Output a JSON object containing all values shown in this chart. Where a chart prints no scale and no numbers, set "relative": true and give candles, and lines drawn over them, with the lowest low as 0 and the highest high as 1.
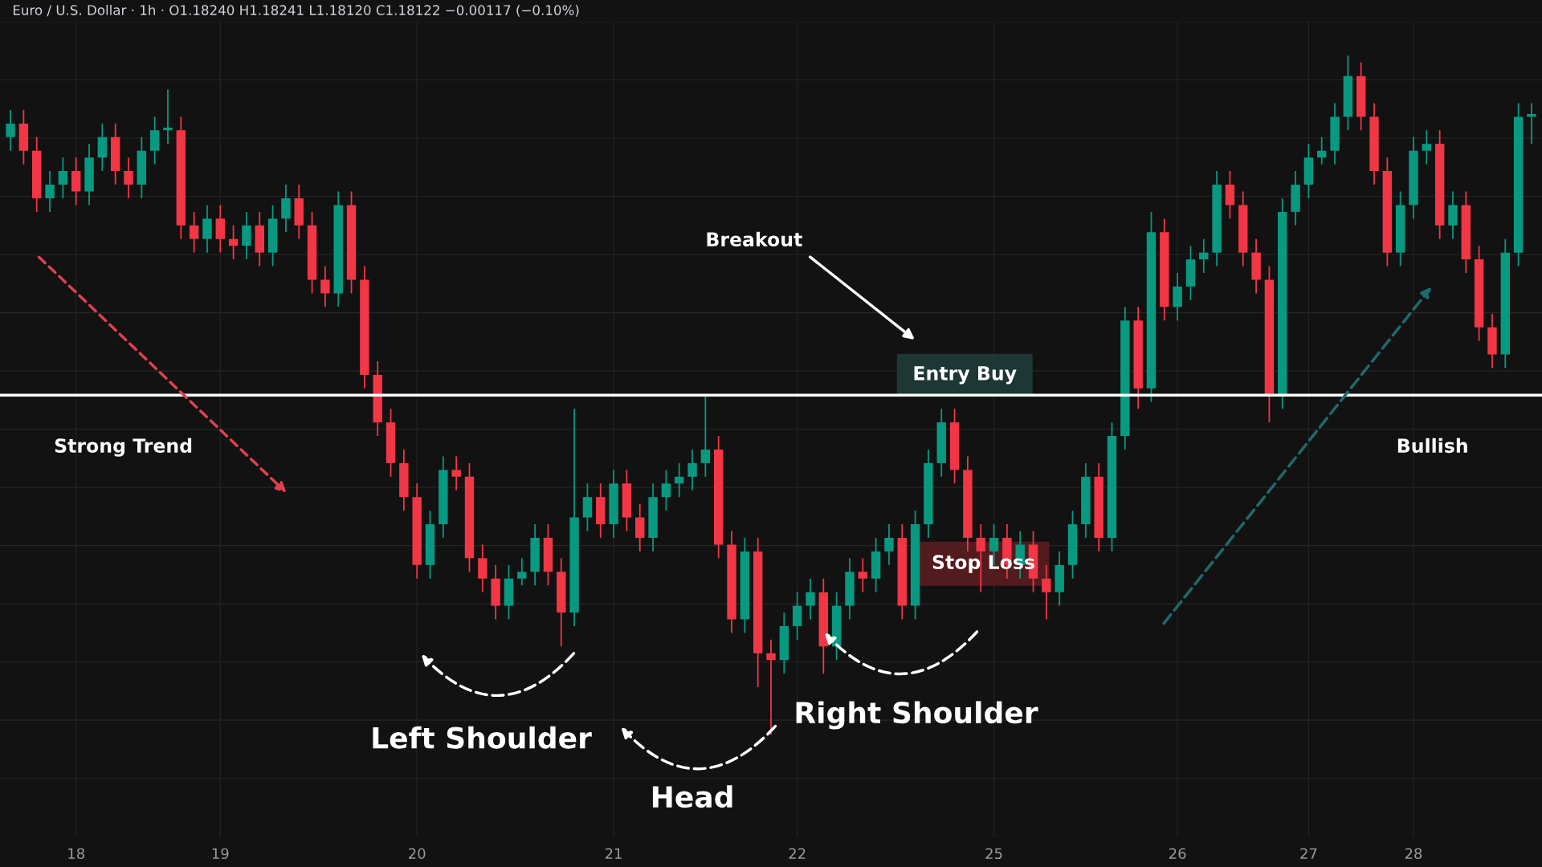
{
  "chart_data": {
    "type": "candlestick",
    "relative": true,
    "grid": true,
    "title": "Euro / U.S. Dollar · 1h · O1.18240 H1.18241 L1.18120 C1.18122 −0.00117 (−0.10%)",
    "categories": [
      null,
      null,
      null,
      null,
      null,
      "18",
      null,
      null,
      null,
      null,
      null,
      null,
      null,
      null,
      null,
      null,
      "19",
      null,
      null,
      null,
      null,
      null,
      null,
      null,
      null,
      null,
      null,
      null,
      null,
      null,
      null,
      "20",
      null,
      null,
      null,
      null,
      null,
      null,
      null,
      null,
      null,
      null,
      null,
      null,
      null,
      null,
      "21",
      null,
      null,
      null,
      null,
      null,
      null,
      null,
      null,
      null,
      null,
      null,
      null,
      null,
      "22",
      null,
      null,
      null,
      null,
      null,
      null,
      null,
      null,
      null,
      null,
      null,
      null,
      null,
      null,
      "25",
      null,
      null,
      null,
      null,
      null,
      null,
      null,
      null,
      null,
      null,
      null,
      null,
      null,
      "26",
      null,
      null,
      null,
      null,
      null,
      null,
      null,
      null,
      null,
      "27",
      null,
      null,
      null,
      null,
      null,
      null,
      null,
      "28",
      null,
      null,
      null,
      null,
      null,
      null,
      null,
      null,
      null
    ],
    "ohlc": [
      [
        0.88,
        0.92,
        0.86,
        0.9
      ],
      [
        0.9,
        0.92,
        0.84,
        0.86
      ],
      [
        0.86,
        0.88,
        0.77,
        0.79
      ],
      [
        0.79,
        0.83,
        0.77,
        0.81
      ],
      [
        0.81,
        0.85,
        0.79,
        0.83
      ],
      [
        0.83,
        0.85,
        0.78,
        0.8
      ],
      [
        0.8,
        0.87,
        0.78,
        0.85
      ],
      [
        0.85,
        0.9,
        0.83,
        0.88
      ],
      [
        0.88,
        0.9,
        0.81,
        0.83
      ],
      [
        0.83,
        0.85,
        0.79,
        0.81
      ],
      [
        0.81,
        0.88,
        0.79,
        0.86
      ],
      [
        0.86,
        0.91,
        0.84,
        0.89
      ],
      [
        0.89,
        0.95,
        0.87,
        0.89
      ],
      [
        0.89,
        0.91,
        0.73,
        0.75
      ],
      [
        0.75,
        0.77,
        0.71,
        0.73
      ],
      [
        0.73,
        0.78,
        0.71,
        0.76
      ],
      [
        0.76,
        0.78,
        0.71,
        0.73
      ],
      [
        0.73,
        0.75,
        0.7,
        0.72
      ],
      [
        0.72,
        0.77,
        0.7,
        0.75
      ],
      [
        0.75,
        0.77,
        0.69,
        0.71
      ],
      [
        0.71,
        0.78,
        0.69,
        0.76
      ],
      [
        0.76,
        0.81,
        0.74,
        0.79
      ],
      [
        0.79,
        0.81,
        0.73,
        0.75
      ],
      [
        0.75,
        0.77,
        0.65,
        0.67
      ],
      [
        0.67,
        0.69,
        0.63,
        0.65
      ],
      [
        0.65,
        0.8,
        0.63,
        0.78
      ],
      [
        0.78,
        0.8,
        0.65,
        0.67
      ],
      [
        0.67,
        0.69,
        0.51,
        0.53
      ],
      [
        0.53,
        0.55,
        0.44,
        0.46
      ],
      [
        0.46,
        0.48,
        0.38,
        0.4
      ],
      [
        0.4,
        0.42,
        0.33,
        0.35
      ],
      [
        0.35,
        0.37,
        0.23,
        0.25
      ],
      [
        0.25,
        0.33,
        0.23,
        0.31
      ],
      [
        0.31,
        0.41,
        0.29,
        0.39
      ],
      [
        0.39,
        0.41,
        0.36,
        0.38
      ],
      [
        0.38,
        0.4,
        0.24,
        0.26
      ],
      [
        0.26,
        0.28,
        0.21,
        0.23
      ],
      [
        0.23,
        0.25,
        0.17,
        0.19
      ],
      [
        0.19,
        0.25,
        0.17,
        0.23
      ],
      [
        0.23,
        0.26,
        0.22,
        0.24
      ],
      [
        0.24,
        0.31,
        0.22,
        0.29
      ],
      [
        0.29,
        0.31,
        0.22,
        0.24
      ],
      [
        0.24,
        0.26,
        0.13,
        0.18
      ],
      [
        0.18,
        0.48,
        0.16,
        0.32
      ],
      [
        0.32,
        0.37,
        0.3,
        0.35
      ],
      [
        0.35,
        0.37,
        0.29,
        0.31
      ],
      [
        0.31,
        0.39,
        0.29,
        0.37
      ],
      [
        0.37,
        0.39,
        0.3,
        0.32
      ],
      [
        0.32,
        0.34,
        0.27,
        0.29
      ],
      [
        0.29,
        0.37,
        0.27,
        0.35
      ],
      [
        0.35,
        0.39,
        0.33,
        0.37
      ],
      [
        0.37,
        0.4,
        0.35,
        0.38
      ],
      [
        0.38,
        0.42,
        0.36,
        0.4
      ],
      [
        0.4,
        0.5,
        0.38,
        0.42
      ],
      [
        0.42,
        0.44,
        0.26,
        0.28
      ],
      [
        0.28,
        0.3,
        0.15,
        0.17
      ],
      [
        0.17,
        0.29,
        0.15,
        0.27
      ],
      [
        0.27,
        0.29,
        0.07,
        0.12
      ],
      [
        0.12,
        0.14,
        0.0,
        0.11
      ],
      [
        0.11,
        0.18,
        0.09,
        0.16
      ],
      [
        0.16,
        0.21,
        0.14,
        0.19
      ],
      [
        0.19,
        0.23,
        0.17,
        0.21
      ],
      [
        0.21,
        0.23,
        0.09,
        0.13
      ],
      [
        0.13,
        0.21,
        0.11,
        0.19
      ],
      [
        0.19,
        0.26,
        0.17,
        0.24
      ],
      [
        0.24,
        0.26,
        0.21,
        0.23
      ],
      [
        0.23,
        0.29,
        0.21,
        0.27
      ],
      [
        0.27,
        0.31,
        0.25,
        0.29
      ],
      [
        0.29,
        0.31,
        0.17,
        0.19
      ],
      [
        0.19,
        0.33,
        0.17,
        0.31
      ],
      [
        0.31,
        0.42,
        0.29,
        0.4
      ],
      [
        0.4,
        0.48,
        0.38,
        0.46
      ],
      [
        0.46,
        0.48,
        0.37,
        0.39
      ],
      [
        0.39,
        0.41,
        0.27,
        0.29
      ],
      [
        0.29,
        0.31,
        0.21,
        0.27
      ],
      [
        0.27,
        0.31,
        0.25,
        0.29
      ],
      [
        0.29,
        0.31,
        0.23,
        0.25
      ],
      [
        0.25,
        0.3,
        0.23,
        0.28
      ],
      [
        0.28,
        0.3,
        0.21,
        0.23
      ],
      [
        0.23,
        0.25,
        0.17,
        0.21
      ],
      [
        0.21,
        0.27,
        0.19,
        0.25
      ],
      [
        0.25,
        0.33,
        0.23,
        0.31
      ],
      [
        0.31,
        0.4,
        0.29,
        0.38
      ],
      [
        0.38,
        0.4,
        0.27,
        0.29
      ],
      [
        0.29,
        0.46,
        0.27,
        0.44
      ],
      [
        0.44,
        0.63,
        0.42,
        0.61
      ],
      [
        0.61,
        0.63,
        0.48,
        0.51
      ],
      [
        0.51,
        0.77,
        0.49,
        0.74
      ],
      [
        0.74,
        0.76,
        0.61,
        0.63
      ],
      [
        0.63,
        0.68,
        0.61,
        0.66
      ],
      [
        0.66,
        0.72,
        0.64,
        0.7
      ],
      [
        0.7,
        0.73,
        0.68,
        0.71
      ],
      [
        0.71,
        0.83,
        0.69,
        0.81
      ],
      [
        0.81,
        0.83,
        0.76,
        0.78
      ],
      [
        0.78,
        0.8,
        0.69,
        0.71
      ],
      [
        0.71,
        0.73,
        0.65,
        0.67
      ],
      [
        0.67,
        0.69,
        0.46,
        0.5
      ],
      [
        0.5,
        0.79,
        0.48,
        0.77
      ],
      [
        0.77,
        0.83,
        0.75,
        0.81
      ],
      [
        0.81,
        0.87,
        0.79,
        0.85
      ],
      [
        0.85,
        0.88,
        0.84,
        0.86
      ],
      [
        0.86,
        0.93,
        0.84,
        0.91
      ],
      [
        0.91,
        1.0,
        0.89,
        0.97
      ],
      [
        0.97,
        0.99,
        0.89,
        0.91
      ],
      [
        0.91,
        0.93,
        0.81,
        0.83
      ],
      [
        0.83,
        0.85,
        0.69,
        0.71
      ],
      [
        0.71,
        0.8,
        0.69,
        0.78
      ],
      [
        0.78,
        0.88,
        0.76,
        0.86
      ],
      [
        0.86,
        0.89,
        0.84,
        0.87
      ],
      [
        0.87,
        0.89,
        0.73,
        0.75
      ],
      [
        0.75,
        0.8,
        0.73,
        0.78
      ],
      [
        0.78,
        0.8,
        0.68,
        0.7
      ],
      [
        0.7,
        0.72,
        0.58,
        0.6
      ],
      [
        0.6,
        0.62,
        0.54,
        0.56
      ],
      [
        0.56,
        0.73,
        0.54,
        0.71
      ],
      [
        0.71,
        0.93,
        0.69,
        0.91
      ],
      [
        0.91,
        0.93,
        0.87,
        0.91
      ]
    ],
    "ref_lines": [
      {
        "axis": "y",
        "value": 0.5,
        "color": "#ffffff"
      }
    ],
    "annotations": [
      "Strong Trend",
      "Breakout",
      "Left Shoulder",
      "Head",
      "Right Shoulder",
      "Bullish",
      "Entry Buy",
      "Stop Loss"
    ]
  }
}
